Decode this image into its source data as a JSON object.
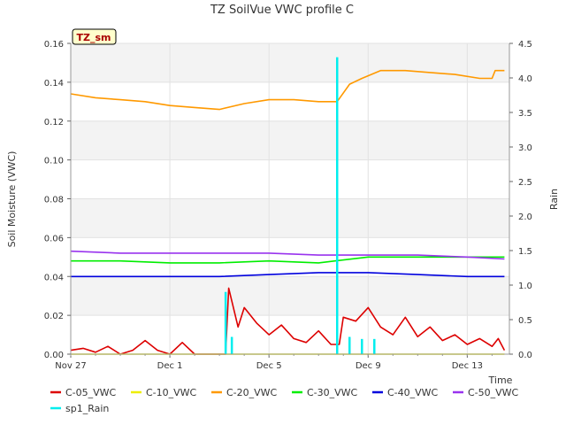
{
  "chart_data": {
    "type": "line",
    "title": "TZ SoilVue VWC profile C",
    "station_label": "TZ_sm",
    "xlabel": "Time",
    "ylabel": "Soil Moisture (VWC)",
    "y2label": "Rain",
    "xlim": [
      "2023-11-27",
      "2023-12-14.7"
    ],
    "ylim": [
      0,
      0.16
    ],
    "y2lim": [
      0,
      4.5
    ],
    "x_ticks": [
      {
        "label": "Nov 27",
        "date": "2023-11-27"
      },
      {
        "label": "Dec 1",
        "date": "2023-12-01"
      },
      {
        "label": "Dec 5",
        "date": "2023-12-05"
      },
      {
        "label": "Dec 9",
        "date": "2023-12-09"
      },
      {
        "label": "Dec 13",
        "date": "2023-12-13"
      }
    ],
    "y_ticks": [
      "0.00",
      "0.02",
      "0.04",
      "0.06",
      "0.08",
      "0.10",
      "0.12",
      "0.14",
      "0.16"
    ],
    "y2_ticks": [
      "0.0",
      "0.5",
      "1.0",
      "1.5",
      "2.0",
      "2.5",
      "3.0",
      "3.5",
      "4.0",
      "4.5"
    ],
    "grid": true,
    "legend_position": "bottom",
    "series": [
      {
        "name": "C-05_VWC",
        "color": "#dd0000",
        "axis": "left",
        "points": [
          [
            "2023-11-27T00:00",
            0.002
          ],
          [
            "2023-11-27T12:00",
            0.003
          ],
          [
            "2023-11-28T00:00",
            0.001
          ],
          [
            "2023-11-28T12:00",
            0.004
          ],
          [
            "2023-11-29T00:00",
            0.0
          ],
          [
            "2023-11-29T12:00",
            0.002
          ],
          [
            "2023-11-30T00:00",
            0.007
          ],
          [
            "2023-11-30T12:00",
            0.002
          ],
          [
            "2023-12-01T00:00",
            0.0
          ],
          [
            "2023-12-01T12:00",
            0.006
          ],
          [
            "2023-12-02T00:00",
            0.0
          ],
          [
            "2023-12-02T12:00",
            0.0
          ],
          [
            "2023-12-03T00:00",
            0.0
          ],
          [
            "2023-12-03T06:00",
            0.0
          ],
          [
            "2023-12-03T09:00",
            0.034
          ],
          [
            "2023-12-03T18:00",
            0.014
          ],
          [
            "2023-12-04T00:00",
            0.024
          ],
          [
            "2023-12-04T12:00",
            0.016
          ],
          [
            "2023-12-05T00:00",
            0.01
          ],
          [
            "2023-12-05T12:00",
            0.015
          ],
          [
            "2023-12-06T00:00",
            0.008
          ],
          [
            "2023-12-06T12:00",
            0.006
          ],
          [
            "2023-12-07T00:00",
            0.012
          ],
          [
            "2023-12-07T12:00",
            0.005
          ],
          [
            "2023-12-07T20:00",
            0.005
          ],
          [
            "2023-12-08T00:00",
            0.019
          ],
          [
            "2023-12-08T12:00",
            0.017
          ],
          [
            "2023-12-09T00:00",
            0.024
          ],
          [
            "2023-12-09T12:00",
            0.014
          ],
          [
            "2023-12-10T00:00",
            0.01
          ],
          [
            "2023-12-10T12:00",
            0.019
          ],
          [
            "2023-12-11T00:00",
            0.009
          ],
          [
            "2023-12-11T12:00",
            0.014
          ],
          [
            "2023-12-12T00:00",
            0.007
          ],
          [
            "2023-12-12T12:00",
            0.01
          ],
          [
            "2023-12-13T00:00",
            0.005
          ],
          [
            "2023-12-13T12:00",
            0.008
          ],
          [
            "2023-12-14T00:00",
            0.004
          ],
          [
            "2023-12-14T06:00",
            0.008
          ],
          [
            "2023-12-14T12:00",
            0.002
          ]
        ]
      },
      {
        "name": "C-10_VWC",
        "color": "#eeee00",
        "axis": "left",
        "points": [
          [
            "2023-11-27T00:00",
            0.0
          ],
          [
            "2023-12-14T12:00",
            0.0
          ]
        ]
      },
      {
        "name": "C-20_VWC",
        "color": "#ff9900",
        "axis": "left",
        "points": [
          [
            "2023-11-27T00:00",
            0.134
          ],
          [
            "2023-11-28T00:00",
            0.132
          ],
          [
            "2023-11-29T00:00",
            0.131
          ],
          [
            "2023-11-30T00:00",
            0.13
          ],
          [
            "2023-12-01T00:00",
            0.128
          ],
          [
            "2023-12-02T00:00",
            0.127
          ],
          [
            "2023-12-03T00:00",
            0.126
          ],
          [
            "2023-12-04T00:00",
            0.129
          ],
          [
            "2023-12-05T00:00",
            0.131
          ],
          [
            "2023-12-06T00:00",
            0.131
          ],
          [
            "2023-12-07T00:00",
            0.13
          ],
          [
            "2023-12-07T18:00",
            0.13
          ],
          [
            "2023-12-08T06:00",
            0.139
          ],
          [
            "2023-12-08T18:00",
            0.142
          ],
          [
            "2023-12-09T12:00",
            0.146
          ],
          [
            "2023-12-10T12:00",
            0.146
          ],
          [
            "2023-12-11T12:00",
            0.145
          ],
          [
            "2023-12-12T12:00",
            0.144
          ],
          [
            "2023-12-13T12:00",
            0.142
          ],
          [
            "2023-12-14T00:00",
            0.142
          ],
          [
            "2023-12-14T03:00",
            0.146
          ],
          [
            "2023-12-14T12:00",
            0.146
          ]
        ]
      },
      {
        "name": "C-30_VWC",
        "color": "#00ee00",
        "axis": "left",
        "points": [
          [
            "2023-11-27T00:00",
            0.048
          ],
          [
            "2023-11-29T00:00",
            0.048
          ],
          [
            "2023-12-01T00:00",
            0.047
          ],
          [
            "2023-12-03T00:00",
            0.047
          ],
          [
            "2023-12-05T00:00",
            0.048
          ],
          [
            "2023-12-07T00:00",
            0.047
          ],
          [
            "2023-12-09T00:00",
            0.05
          ],
          [
            "2023-12-11T00:00",
            0.05
          ],
          [
            "2023-12-13T00:00",
            0.05
          ],
          [
            "2023-12-14T12:00",
            0.05
          ]
        ]
      },
      {
        "name": "C-40_VWC",
        "color": "#0000dd",
        "axis": "left",
        "points": [
          [
            "2023-11-27T00:00",
            0.04
          ],
          [
            "2023-11-29T00:00",
            0.04
          ],
          [
            "2023-12-01T00:00",
            0.04
          ],
          [
            "2023-12-03T00:00",
            0.04
          ],
          [
            "2023-12-05T00:00",
            0.041
          ],
          [
            "2023-12-07T00:00",
            0.042
          ],
          [
            "2023-12-09T00:00",
            0.042
          ],
          [
            "2023-12-11T00:00",
            0.041
          ],
          [
            "2023-12-13T00:00",
            0.04
          ],
          [
            "2023-12-14T12:00",
            0.04
          ]
        ]
      },
      {
        "name": "C-50_VWC",
        "color": "#9933ee",
        "axis": "left",
        "points": [
          [
            "2023-11-27T00:00",
            0.053
          ],
          [
            "2023-11-29T00:00",
            0.052
          ],
          [
            "2023-12-01T00:00",
            0.052
          ],
          [
            "2023-12-03T00:00",
            0.052
          ],
          [
            "2023-12-05T00:00",
            0.052
          ],
          [
            "2023-12-07T00:00",
            0.051
          ],
          [
            "2023-12-09T00:00",
            0.051
          ],
          [
            "2023-12-11T00:00",
            0.051
          ],
          [
            "2023-12-13T00:00",
            0.05
          ],
          [
            "2023-12-14T12:00",
            0.049
          ]
        ]
      },
      {
        "name": "sp1_Rain",
        "color": "#00eeee",
        "axis": "right",
        "points": [
          [
            "2023-12-03T06:00",
            0.9
          ],
          [
            "2023-12-03T12:00",
            0.25
          ],
          [
            "2023-12-07T18:00",
            4.3
          ],
          [
            "2023-12-08T06:00",
            0.25
          ],
          [
            "2023-12-08T18:00",
            0.22
          ],
          [
            "2023-12-09T06:00",
            0.22
          ]
        ]
      }
    ]
  }
}
